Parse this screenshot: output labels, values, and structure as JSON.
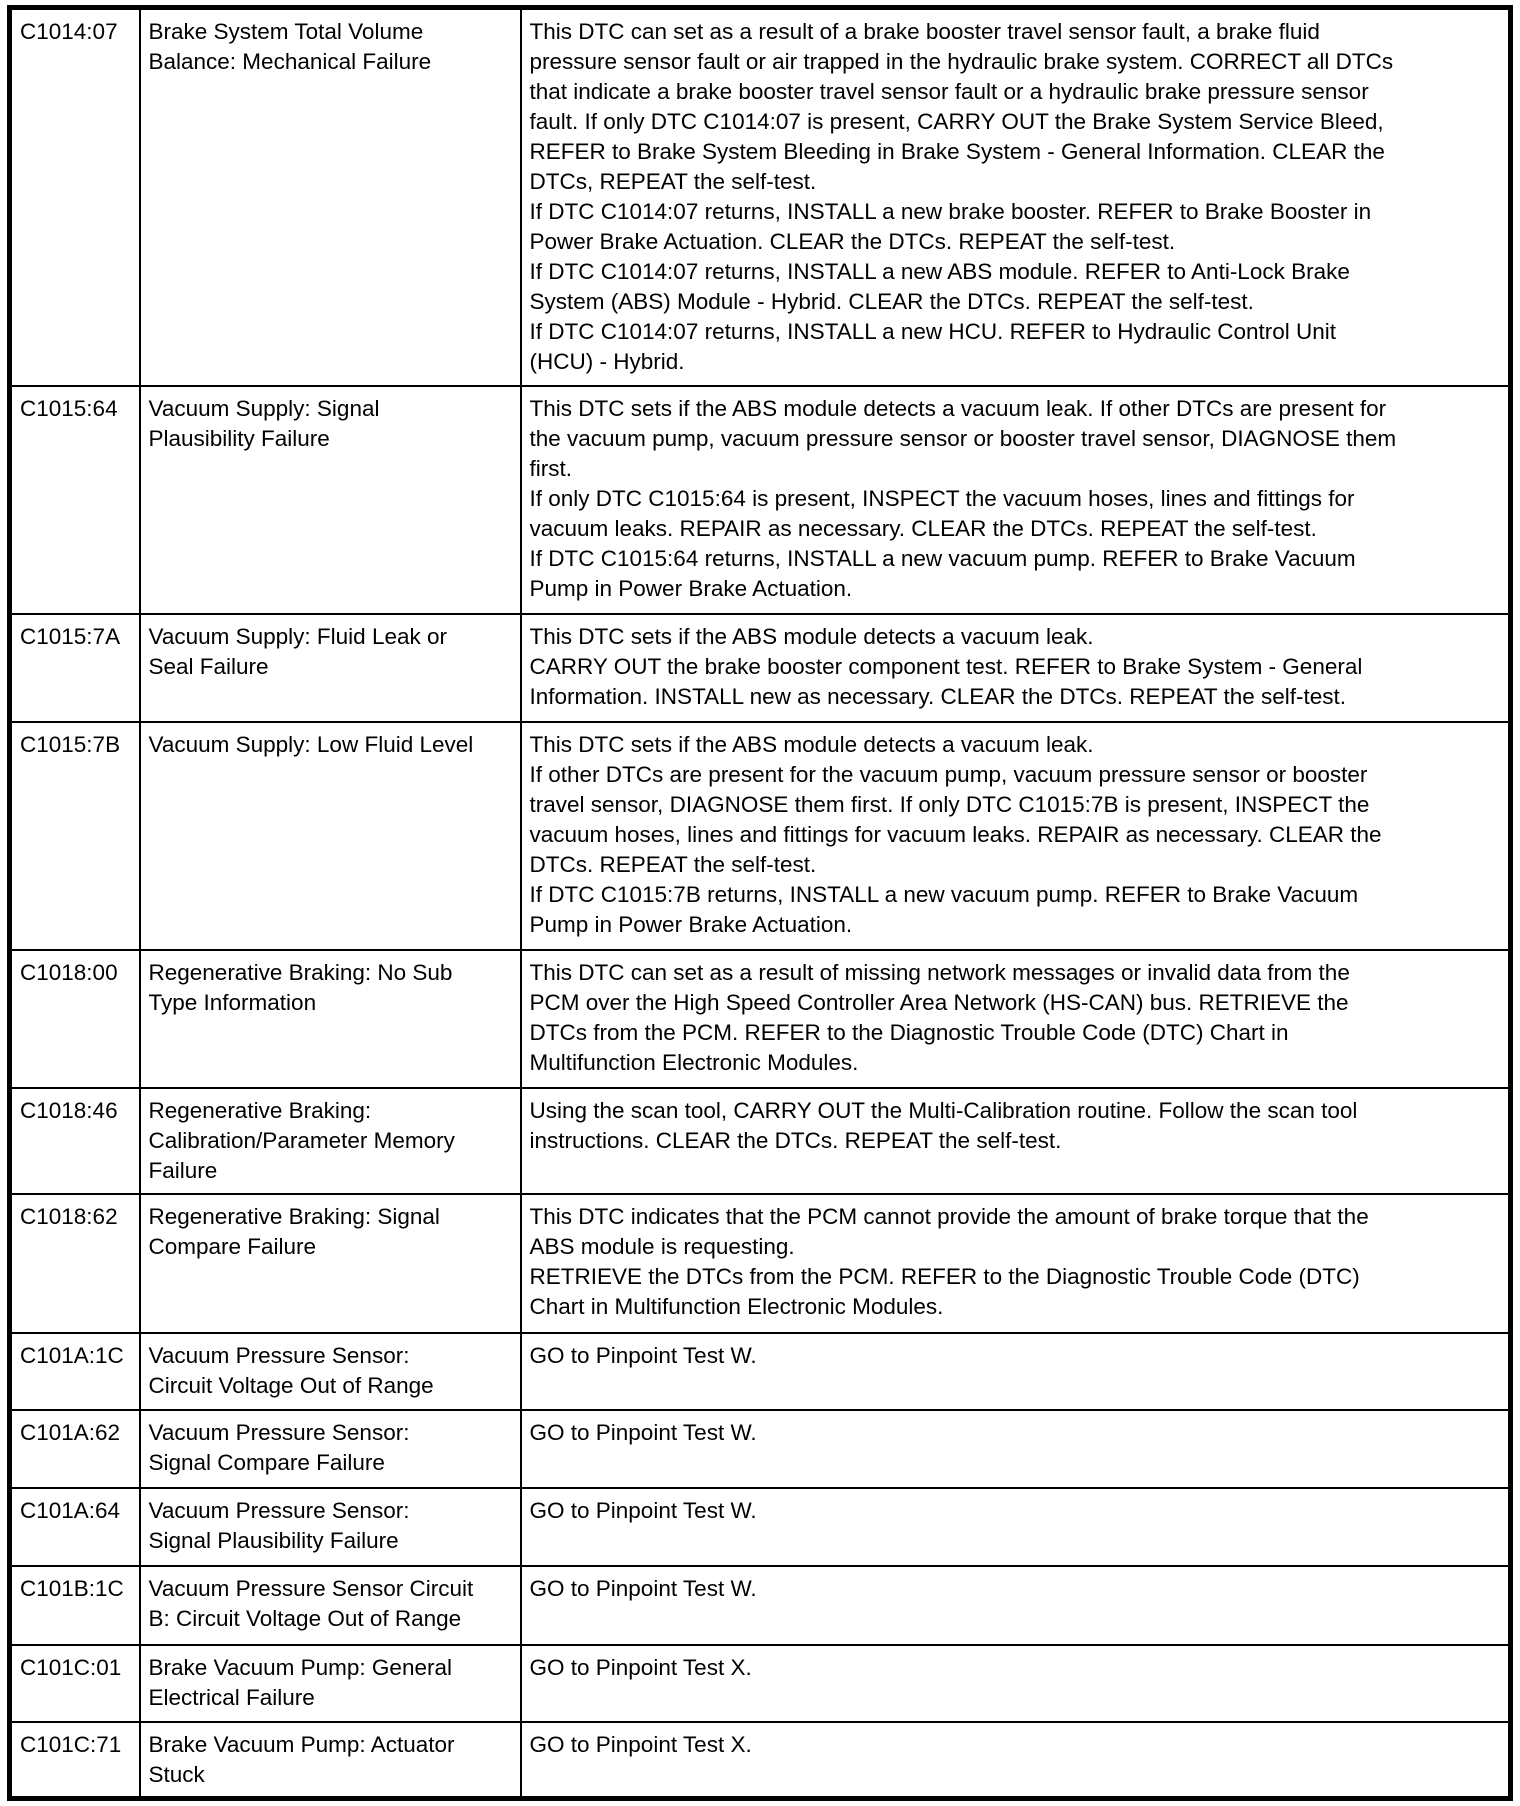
{
  "rows": [
    {
      "code": "C1014:07",
      "desc": [
        "Brake System Total Volume",
        "Balance: Mechanical Failure"
      ],
      "action": [
        "This DTC can set as a result of a brake booster travel sensor fault, a brake fluid",
        "pressure sensor fault or air trapped in the hydraulic brake system. CORRECT all DTCs",
        "that indicate a brake booster travel sensor fault or a hydraulic brake pressure sensor",
        "fault. If only DTC C1014:07 is present, CARRY OUT the Brake System Service Bleed,",
        "REFER to Brake System Bleeding in Brake System - General Information. CLEAR the",
        "DTCs, REPEAT the self-test.",
        "If DTC C1014:07 returns, INSTALL a new brake booster. REFER to Brake Booster in",
        "Power Brake Actuation. CLEAR the DTCs. REPEAT the self-test.",
        "If DTC C1014:07 returns, INSTALL a new ABS module. REFER to Anti-Lock Brake",
        "System (ABS) Module - Hybrid. CLEAR the DTCs. REPEAT the self-test.",
        "If DTC C1014:07 returns, INSTALL a new HCU. REFER to Hydraulic Control Unit",
        "(HCU) - Hybrid."
      ]
    },
    {
      "code": "C1015:64",
      "desc": [
        "Vacuum Supply: Signal",
        "Plausibility Failure"
      ],
      "action": [
        "This DTC sets if the ABS module detects a vacuum leak. If other DTCs are present for",
        "the vacuum pump, vacuum pressure sensor or booster travel sensor, DIAGNOSE them",
        "first.",
        "If only DTC C1015:64 is present, INSPECT the vacuum hoses, lines and fittings for",
        "vacuum leaks. REPAIR as necessary. CLEAR the DTCs. REPEAT the self-test.",
        "If DTC C1015:64 returns, INSTALL a new vacuum pump. REFER to Brake Vacuum",
        "Pump in Power Brake Actuation."
      ]
    },
    {
      "code": "C1015:7A",
      "desc": [
        "Vacuum Supply: Fluid Leak or",
        "Seal Failure"
      ],
      "action": [
        "This DTC sets if the ABS module detects a vacuum leak.",
        "CARRY OUT the brake booster component test. REFER to Brake System - General",
        "Information. INSTALL new as necessary. CLEAR the DTCs. REPEAT the self-test."
      ]
    },
    {
      "code": "C1015:7B",
      "desc": [
        "Vacuum Supply: Low Fluid Level"
      ],
      "action": [
        "This DTC sets if the ABS module detects a vacuum leak.",
        "If other DTCs are present for the vacuum pump, vacuum pressure sensor or booster",
        "travel sensor, DIAGNOSE them first. If only DTC C1015:7B is present, INSPECT the",
        "vacuum hoses, lines and fittings for vacuum leaks. REPAIR as necessary. CLEAR the",
        "DTCs. REPEAT the self-test.",
        "If DTC C1015:7B returns, INSTALL a new vacuum pump. REFER to Brake Vacuum",
        "Pump in Power Brake Actuation."
      ]
    },
    {
      "code": "C1018:00",
      "desc": [
        "Regenerative Braking: No Sub",
        "Type Information"
      ],
      "action": [
        "This DTC can set as a result of missing network messages or invalid data from the",
        "PCM over the High Speed Controller Area Network (HS-CAN) bus. RETRIEVE the",
        "DTCs from the PCM. REFER to the Diagnostic Trouble Code (DTC) Chart in",
        "Multifunction Electronic Modules."
      ]
    },
    {
      "code": "C1018:46",
      "desc": [
        "Regenerative Braking:",
        "Calibration/Parameter Memory",
        "Failure"
      ],
      "action": [
        "Using the scan tool, CARRY OUT the Multi-Calibration routine. Follow the scan tool",
        "instructions. CLEAR the DTCs. REPEAT the self-test."
      ]
    },
    {
      "code": "C1018:62",
      "desc": [
        "Regenerative Braking: Signal",
        "Compare Failure"
      ],
      "action": [
        "This DTC indicates that the PCM cannot provide the amount of brake torque that the",
        "ABS module is requesting.",
        "RETRIEVE the DTCs from the PCM. REFER to the Diagnostic Trouble Code (DTC)",
        "Chart in Multifunction Electronic Modules."
      ]
    },
    {
      "code": "C101A:1C",
      "desc": [
        "Vacuum Pressure Sensor:",
        "Circuit Voltage Out of Range"
      ],
      "action": [
        "GO to Pinpoint Test W."
      ]
    },
    {
      "code": "C101A:62",
      "desc": [
        "Vacuum Pressure Sensor:",
        "Signal Compare Failure"
      ],
      "action": [
        "GO to Pinpoint Test W."
      ]
    },
    {
      "code": "C101A:64",
      "desc": [
        "Vacuum Pressure Sensor:",
        "Signal Plausibility Failure"
      ],
      "action": [
        "GO to Pinpoint Test W."
      ]
    },
    {
      "code": "C101B:1C",
      "desc": [
        "Vacuum Pressure Sensor Circuit",
        "B: Circuit Voltage Out of Range"
      ],
      "action": [
        "GO to Pinpoint Test W."
      ]
    },
    {
      "code": "C101C:01",
      "desc": [
        "Brake Vacuum Pump: General",
        "Electrical Failure"
      ],
      "action": [
        "GO to Pinpoint Test X."
      ]
    },
    {
      "code": "C101C:71",
      "desc": [
        "Brake Vacuum Pump: Actuator",
        "Stuck"
      ],
      "action": [
        "GO to Pinpoint Test X."
      ]
    }
  ]
}
